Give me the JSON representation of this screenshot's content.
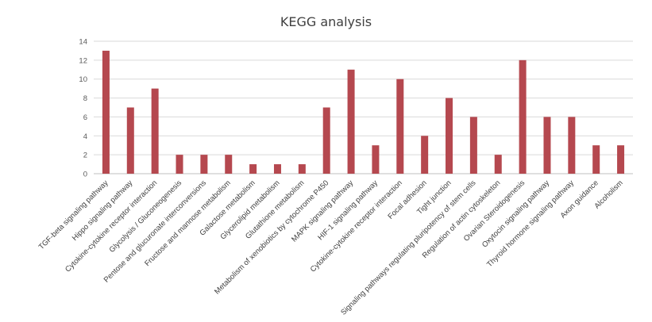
{
  "chart_data": {
    "type": "bar",
    "title": "KEGG analysis",
    "xlabel": "",
    "ylabel": "",
    "ylim": [
      0,
      14
    ],
    "yticks": [
      0,
      2,
      4,
      6,
      8,
      10,
      12,
      14
    ],
    "grid": true,
    "legend": "none",
    "bar_color": "#b5484f",
    "categories": [
      "TGF-beta signaling pathway",
      "Hippo signaling pathway",
      "Cytokine-cytokine receptor interaction",
      "Glycolysis / Gluconeogenesis",
      "Pentose and glucuronate interconversions",
      "Fructose and mannose metabolism",
      "Galactose metabolism",
      "Glycerolipid metabolism",
      "Glutathione metabolism",
      "Metabolism of xenobiotics by cytochrome P450",
      "MAPK signaling pathway",
      "HIF-1 signaling pathway",
      "Cytokine-cytokine receptor interaction",
      "Focal adhesion",
      "Tight junction",
      "Signaling pathways regulating pluripotency of stem cells",
      "Regulation of actin cytoskeleton",
      "Ovarian Steroidogenesis",
      "Oxytocin signaling pathway",
      "Thyroid hormone signaling pathway",
      "Axon guidance",
      "Alcoholism"
    ],
    "values": [
      13,
      7,
      9,
      2,
      2,
      2,
      1,
      1,
      1,
      7,
      11,
      3,
      10,
      4,
      8,
      6,
      2,
      12,
      6,
      6,
      3,
      3
    ]
  }
}
